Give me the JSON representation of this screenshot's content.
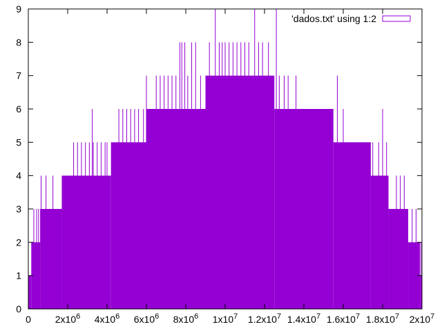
{
  "chart_data": {
    "type": "bar",
    "title": "",
    "xlabel": "",
    "ylabel": "",
    "xlim": [
      0,
      20000000
    ],
    "ylim": [
      0,
      9
    ],
    "grid": false,
    "legend_position": "top-right",
    "series": [
      {
        "name": "'dados.txt' using 1:2",
        "color": "#9400d3",
        "description_of_shape": "impulse histogram",
        "levels": [
          {
            "x_start": 0,
            "x_end": 150000,
            "y": 1
          },
          {
            "x_start": 150000,
            "x_end": 600000,
            "y": 2
          },
          {
            "x_start": 600000,
            "x_end": 1700000,
            "y": 3
          },
          {
            "x_start": 1700000,
            "x_end": 4200000,
            "y": 4
          },
          {
            "x_start": 4200000,
            "x_end": 6000000,
            "y": 5
          },
          {
            "x_start": 6000000,
            "x_end": 9000000,
            "y": 6
          },
          {
            "x_start": 9000000,
            "x_end": 12500000,
            "y": 7
          },
          {
            "x_start": 12500000,
            "x_end": 15500000,
            "y": 6
          },
          {
            "x_start": 15500000,
            "x_end": 17400000,
            "y": 5
          },
          {
            "x_start": 17400000,
            "x_end": 18300000,
            "y": 4
          },
          {
            "x_start": 18300000,
            "x_end": 19300000,
            "y": 3
          },
          {
            "x_start": 19300000,
            "x_end": 19900000,
            "y": 2
          },
          {
            "x_start": 19900000,
            "x_end": 20000000,
            "y": 1
          }
        ],
        "spikes": [
          {
            "x": 280000,
            "y": 3
          },
          {
            "x": 420000,
            "y": 3
          },
          {
            "x": 520000,
            "y": 3
          },
          {
            "x": 650000,
            "y": 4
          },
          {
            "x": 900000,
            "y": 4
          },
          {
            "x": 1250000,
            "y": 4
          },
          {
            "x": 1400000,
            "y": 3
          },
          {
            "x": 1900000,
            "y": 4
          },
          {
            "x": 2300000,
            "y": 5
          },
          {
            "x": 2500000,
            "y": 5
          },
          {
            "x": 2700000,
            "y": 5
          },
          {
            "x": 2900000,
            "y": 5
          },
          {
            "x": 3100000,
            "y": 5
          },
          {
            "x": 3300000,
            "y": 5
          },
          {
            "x": 3500000,
            "y": 5
          },
          {
            "x": 3700000,
            "y": 5
          },
          {
            "x": 3900000,
            "y": 5
          },
          {
            "x": 3250000,
            "y": 6
          },
          {
            "x": 4000000,
            "y": 5
          },
          {
            "x": 4600000,
            "y": 6
          },
          {
            "x": 4800000,
            "y": 6
          },
          {
            "x": 5000000,
            "y": 6
          },
          {
            "x": 5200000,
            "y": 6
          },
          {
            "x": 5400000,
            "y": 6
          },
          {
            "x": 5600000,
            "y": 6
          },
          {
            "x": 5850000,
            "y": 6
          },
          {
            "x": 6000000,
            "y": 7
          },
          {
            "x": 6500000,
            "y": 7
          },
          {
            "x": 6700000,
            "y": 7
          },
          {
            "x": 6900000,
            "y": 7
          },
          {
            "x": 7100000,
            "y": 7
          },
          {
            "x": 7300000,
            "y": 7
          },
          {
            "x": 7500000,
            "y": 7
          },
          {
            "x": 7700000,
            "y": 8
          },
          {
            "x": 7800000,
            "y": 8
          },
          {
            "x": 7950000,
            "y": 8
          },
          {
            "x": 8100000,
            "y": 7
          },
          {
            "x": 8300000,
            "y": 8
          },
          {
            "x": 8500000,
            "y": 8
          },
          {
            "x": 8750000,
            "y": 7
          },
          {
            "x": 9200000,
            "y": 8
          },
          {
            "x": 9500000,
            "y": 9
          },
          {
            "x": 9700000,
            "y": 8
          },
          {
            "x": 9850000,
            "y": 8
          },
          {
            "x": 10000000,
            "y": 8
          },
          {
            "x": 10200000,
            "y": 8
          },
          {
            "x": 10400000,
            "y": 8
          },
          {
            "x": 10600000,
            "y": 8
          },
          {
            "x": 10800000,
            "y": 8
          },
          {
            "x": 11000000,
            "y": 8
          },
          {
            "x": 11200000,
            "y": 8
          },
          {
            "x": 11500000,
            "y": 9
          },
          {
            "x": 11700000,
            "y": 8
          },
          {
            "x": 11900000,
            "y": 8
          },
          {
            "x": 12200000,
            "y": 8
          },
          {
            "x": 12600000,
            "y": 9
          },
          {
            "x": 12750000,
            "y": 7
          },
          {
            "x": 13000000,
            "y": 7
          },
          {
            "x": 13200000,
            "y": 7
          },
          {
            "x": 13600000,
            "y": 7
          },
          {
            "x": 14000000,
            "y": 6
          },
          {
            "x": 14200000,
            "y": 6
          },
          {
            "x": 14400000,
            "y": 6
          },
          {
            "x": 14700000,
            "y": 6
          },
          {
            "x": 14900000,
            "y": 6
          },
          {
            "x": 15100000,
            "y": 6
          },
          {
            "x": 15300000,
            "y": 6
          },
          {
            "x": 15700000,
            "y": 7
          },
          {
            "x": 16000000,
            "y": 6
          },
          {
            "x": 16300000,
            "y": 5
          },
          {
            "x": 16500000,
            "y": 5
          },
          {
            "x": 16700000,
            "y": 5
          },
          {
            "x": 16900000,
            "y": 5
          },
          {
            "x": 17100000,
            "y": 5
          },
          {
            "x": 17300000,
            "y": 5
          },
          {
            "x": 17500000,
            "y": 5
          },
          {
            "x": 17800000,
            "y": 5
          },
          {
            "x": 18000000,
            "y": 6
          },
          {
            "x": 18200000,
            "y": 5
          },
          {
            "x": 18700000,
            "y": 4
          },
          {
            "x": 18900000,
            "y": 4
          },
          {
            "x": 19100000,
            "y": 4
          },
          {
            "x": 19500000,
            "y": 3
          },
          {
            "x": 19700000,
            "y": 3
          },
          {
            "x": 19950000,
            "y": 2
          }
        ]
      }
    ],
    "x_ticks": [
      {
        "value": 0,
        "label_base": "0",
        "label_exp": ""
      },
      {
        "value": 2000000,
        "label_base": "2x10",
        "label_exp": "6"
      },
      {
        "value": 4000000,
        "label_base": "4x10",
        "label_exp": "6"
      },
      {
        "value": 6000000,
        "label_base": "6x10",
        "label_exp": "6"
      },
      {
        "value": 8000000,
        "label_base": "8x10",
        "label_exp": "6"
      },
      {
        "value": 10000000,
        "label_base": "1x10",
        "label_exp": "7"
      },
      {
        "value": 12000000,
        "label_base": "1.2x10",
        "label_exp": "7"
      },
      {
        "value": 14000000,
        "label_base": "1.4x10",
        "label_exp": "7"
      },
      {
        "value": 16000000,
        "label_base": "1.6x10",
        "label_exp": "7"
      },
      {
        "value": 18000000,
        "label_base": "1.8x10",
        "label_exp": "7"
      },
      {
        "value": 20000000,
        "label_base": "2x10",
        "label_exp": "7"
      }
    ],
    "y_ticks": [
      {
        "value": 0,
        "label": "0"
      },
      {
        "value": 1,
        "label": "1"
      },
      {
        "value": 2,
        "label": "2"
      },
      {
        "value": 3,
        "label": "3"
      },
      {
        "value": 4,
        "label": "4"
      },
      {
        "value": 5,
        "label": "5"
      },
      {
        "value": 6,
        "label": "6"
      },
      {
        "value": 7,
        "label": "7"
      },
      {
        "value": 8,
        "label": "8"
      },
      {
        "value": 9,
        "label": "9"
      }
    ]
  }
}
